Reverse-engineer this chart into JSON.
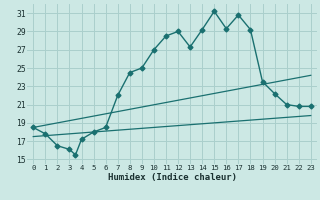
{
  "xlabel": "Humidex (Indice chaleur)",
  "bg_color": "#cce8e4",
  "grid_color": "#aacfcc",
  "line_color": "#1a7070",
  "xlim": [
    -0.5,
    23.5
  ],
  "ylim": [
    14.5,
    32.0
  ],
  "yticks": [
    15,
    17,
    19,
    21,
    23,
    25,
    27,
    29,
    31
  ],
  "xticks": [
    0,
    1,
    2,
    3,
    4,
    5,
    6,
    7,
    8,
    9,
    10,
    11,
    12,
    13,
    14,
    15,
    16,
    17,
    18,
    19,
    20,
    21,
    22,
    23
  ],
  "main_line": [
    [
      0,
      18.5
    ],
    [
      1,
      17.8
    ],
    [
      2,
      16.5
    ],
    [
      3,
      16.1
    ],
    [
      3.5,
      15.5
    ],
    [
      4,
      17.2
    ],
    [
      5,
      18.0
    ],
    [
      6,
      18.5
    ],
    [
      7,
      22.0
    ],
    [
      8,
      24.5
    ],
    [
      9,
      25.0
    ],
    [
      10,
      27.0
    ],
    [
      11,
      28.5
    ],
    [
      12,
      29.0
    ],
    [
      13,
      27.3
    ],
    [
      14,
      29.2
    ],
    [
      15,
      31.2
    ],
    [
      16,
      29.3
    ],
    [
      17,
      30.8
    ],
    [
      18,
      29.2
    ],
    [
      19,
      23.5
    ],
    [
      20,
      22.2
    ],
    [
      21,
      21.0
    ],
    [
      22,
      20.8
    ],
    [
      23,
      20.8
    ]
  ],
  "line2": [
    [
      0,
      18.5
    ],
    [
      23,
      24.2
    ]
  ],
  "line3": [
    [
      0,
      17.5
    ],
    [
      23,
      19.8
    ]
  ]
}
